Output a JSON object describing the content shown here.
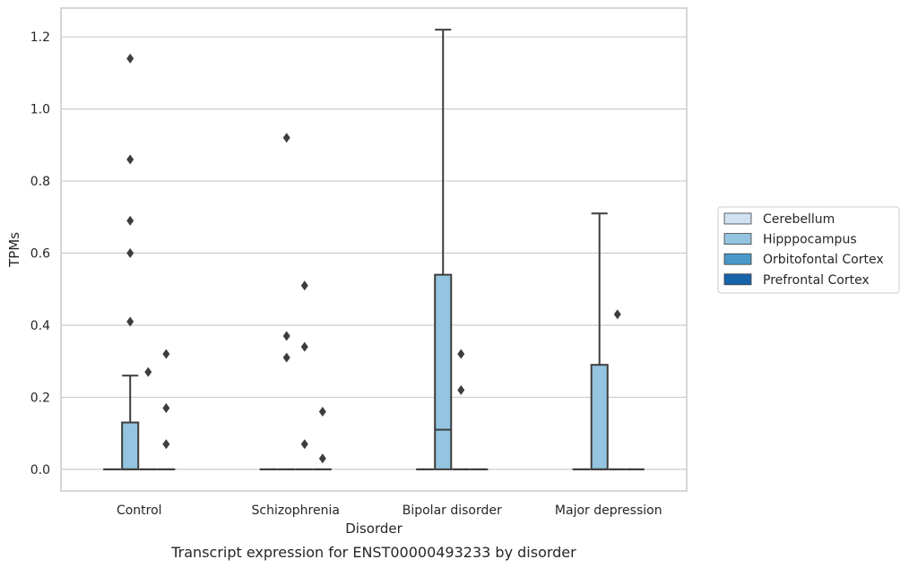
{
  "chart_data": {
    "type": "box",
    "caption": "Transcript expression for ENST00000493233 by disorder",
    "xlabel": "Disorder",
    "ylabel": "TPMs",
    "ylim": [
      -0.06,
      1.28
    ],
    "yticks": [
      0.0,
      0.2,
      0.4,
      0.6,
      0.8,
      1.0,
      1.2
    ],
    "ytick_labels": [
      "0.0",
      "0.2",
      "0.4",
      "0.6",
      "0.8",
      "1.0",
      "1.2"
    ],
    "grid": "horizontal",
    "legend_position": "right",
    "categories": [
      "Control",
      "Schizophrenia",
      "Bipolar disorder",
      "Major depression"
    ],
    "series": [
      {
        "name": "Cerebellum",
        "color": "#d0e1f2",
        "boxes": [
          {
            "whislo": 0,
            "q1": 0,
            "med": 0,
            "q3": 0,
            "whishi": 0,
            "fliers": []
          },
          {
            "whislo": 0,
            "q1": 0,
            "med": 0,
            "q3": 0,
            "whishi": 0,
            "fliers": []
          },
          {
            "whislo": 0,
            "q1": 0,
            "med": 0,
            "q3": 0,
            "whishi": 0,
            "fliers": []
          },
          {
            "whislo": 0,
            "q1": 0,
            "med": 0,
            "q3": 0,
            "whishi": 0,
            "fliers": []
          }
        ]
      },
      {
        "name": "Hipppocampus",
        "color": "#94c4df",
        "boxes": [
          {
            "whislo": 0,
            "q1": 0,
            "med": 0,
            "q3": 0.13,
            "whishi": 0.26,
            "fliers": [
              0.41,
              0.6,
              0.69,
              0.86,
              1.14
            ]
          },
          {
            "whislo": 0,
            "q1": 0,
            "med": 0,
            "q3": 0,
            "whishi": 0,
            "fliers": [
              0.31,
              0.37,
              0.92
            ]
          },
          {
            "whislo": 0,
            "q1": 0,
            "med": 0.11,
            "q3": 0.54,
            "whishi": 1.22,
            "fliers": []
          },
          {
            "whislo": 0,
            "q1": 0,
            "med": 0,
            "q3": 0.29,
            "whishi": 0.71,
            "fliers": []
          }
        ]
      },
      {
        "name": "Orbitofontal Cortex",
        "color": "#4a98c9",
        "boxes": [
          {
            "whislo": 0,
            "q1": 0,
            "med": 0,
            "q3": 0,
            "whishi": 0,
            "fliers": [
              0.27
            ]
          },
          {
            "whislo": 0,
            "q1": 0,
            "med": 0,
            "q3": 0,
            "whishi": 0,
            "fliers": [
              0.07,
              0.34,
              0.51
            ]
          },
          {
            "whislo": 0,
            "q1": 0,
            "med": 0,
            "q3": 0,
            "whishi": 0,
            "fliers": [
              0.22,
              0.32
            ]
          },
          {
            "whislo": 0,
            "q1": 0,
            "med": 0,
            "q3": 0,
            "whishi": 0,
            "fliers": [
              0.43
            ]
          }
        ]
      },
      {
        "name": "Prefrontal Cortex",
        "color": "#1764ab",
        "boxes": [
          {
            "whislo": 0,
            "q1": 0,
            "med": 0,
            "q3": 0,
            "whishi": 0,
            "fliers": [
              0.07,
              0.17,
              0.32
            ]
          },
          {
            "whislo": 0,
            "q1": 0,
            "med": 0,
            "q3": 0,
            "whishi": 0,
            "fliers": [
              0.03,
              0.16
            ]
          },
          {
            "whislo": 0,
            "q1": 0,
            "med": 0,
            "q3": 0,
            "whishi": 0,
            "fliers": []
          },
          {
            "whislo": 0,
            "q1": 0,
            "med": 0,
            "q3": 0,
            "whishi": 0,
            "fliers": []
          }
        ]
      }
    ]
  },
  "colors": {
    "axes_edge": "#cccccc",
    "grid": "#cccccc",
    "box_line": "#3d3d3d"
  }
}
